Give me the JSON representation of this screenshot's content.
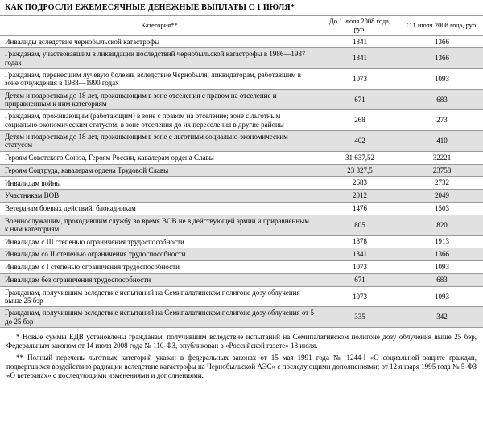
{
  "title": "КАК ПОДРОСЛИ ЕЖЕМЕСЯЧНЫЕ ДЕНЕЖНЫЕ ВЫПЛАТЫ С 1 ИЮЛЯ*",
  "columns": {
    "category": "Категория**",
    "before": "До 1 июля 2008 года, руб.",
    "after": "С 1 июля 2008 года, руб."
  },
  "rows": [
    {
      "cat": "Инвалиды вследствие чернобыльской катастрофы",
      "before": "1341",
      "after": "1366"
    },
    {
      "cat": "Гражданам, участвовавшим в ликвидации последствий чернобыльской катастрофы в 1986—1987 годах",
      "before": "1341",
      "after": "1366"
    },
    {
      "cat": "Гражданам, перенесшим лучевую болезнь вследствие Чернобыля; ликвидаторам, работавшим в зоне отчуждения в 1988—1990 годах",
      "before": "1073",
      "after": "1093"
    },
    {
      "cat": "Детям и подросткам до 18 лет, проживающим в зоне отселения с правом на отселение и приравненным к ним категориям",
      "before": "671",
      "after": "683"
    },
    {
      "cat": "Гражданам, проживающим (работающим) в зоне с правом на отселение; зоне с льготным социально-экономическим статусом; в зоне отселения до их переселения в другие районы",
      "before": "268",
      "after": "273"
    },
    {
      "cat": "Детям и подросткам до 18 лет, проживающим в зоне с льготным социально-экономическим статусом",
      "before": "402",
      "after": "410"
    },
    {
      "cat": "Героям Советского Союза, Героям России, кавалерам ордена Славы",
      "before": "31 637,52",
      "after": "32221"
    },
    {
      "cat": "Героям Соцтруда, кавалерам ордена Трудовой Славы",
      "before": "23 327,5",
      "after": "23758"
    },
    {
      "cat": "Инвалидам войны",
      "before": "2683",
      "after": "2732"
    },
    {
      "cat": "Участникам ВОВ",
      "before": "2012",
      "after": "2049"
    },
    {
      "cat": "Ветеранам боевых действий, блокадникам",
      "before": "1476",
      "after": "1503"
    },
    {
      "cat": "Военнослужащим, проходившим службу во время ВОВ не в действующей армии и приравненным к ним категориям",
      "before": "805",
      "after": "820"
    },
    {
      "cat": "Инвалидам с III степенью ограничения трудоспособности",
      "before": "1878",
      "after": "1913"
    },
    {
      "cat": "Инвалидам со II степенью ограничения трудоспособности",
      "before": "1341",
      "after": "1366"
    },
    {
      "cat": "Инвалидам с I степенью ограничения трудоспособности",
      "before": "1073",
      "after": "1093"
    },
    {
      "cat": "Инвалидам без ограничения трудоспособности",
      "before": "671",
      "after": "683"
    },
    {
      "cat": "Гражданам, получившим вследствие испытаний на Семипалатинском полигоне дозу облучения выше 25 бэр",
      "before": "1073",
      "after": "1093"
    },
    {
      "cat": "Гражданам, получившим вследствие испытаний на Семипалатинском полигоне дозу облучения от 5 до 25 бэр",
      "before": "335",
      "after": "342"
    }
  ],
  "footnote1": "* Новые суммы ЕДВ установлены гражданам, получившим вследствие испытаний на Семипалатинском полигоне дозу облучения выше 25 бэр, Федеральным законом от 14 июля 2008 года № 110-ФЗ, опубликован в «Российской газете» 18 июля.",
  "footnote2": "** Полный перечень льготных категорий указан в федеральных законах от 15 мая 1991 года № 1244-I «О социальной защите граждан, подвергшихся воздействию радиации вследствие катастрофы на Чернобыльской АЭС» с последующими дополнениями; от 12 января 1995 года № 5-ФЗ «О ветеранах» с последующими изменениями и дополнениями."
}
